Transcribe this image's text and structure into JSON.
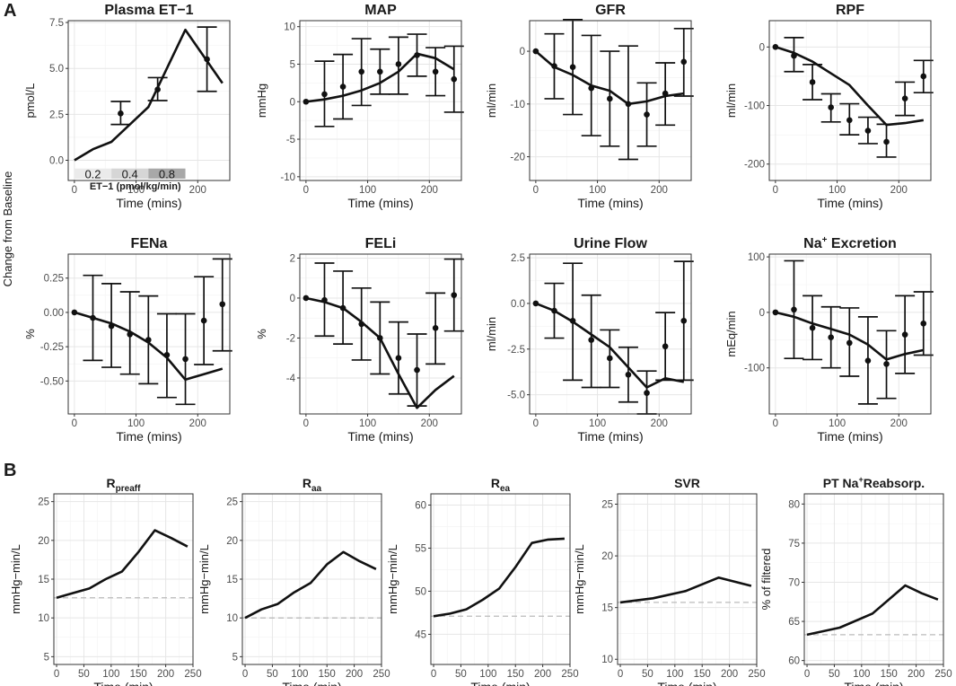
{
  "figure": {
    "panel_a_label": "A",
    "panel_b_label": "B",
    "shared_ylabel": "Change from Baseline",
    "dose_legend": {
      "doses": [
        "0.2",
        "0.4",
        "0.8"
      ],
      "label": "ET−1 (pmol/kg/min)",
      "colors": [
        "#ebebeb",
        "#d6d6d6",
        "#a8a8a8"
      ]
    }
  },
  "colors": {
    "line": "#111111",
    "grid": "#e6e6e6",
    "frame": "#333333",
    "baseline": "#bbbbbb"
  },
  "chart_data": [
    {
      "id": "et1",
      "type": "line",
      "title": "Plasma ET−1",
      "xlabel": "Time (mins)",
      "ylabel": "pmol/L",
      "xlim": [
        -10,
        252
      ],
      "ylim": [
        -1.1,
        7.6
      ],
      "xticks": [
        0,
        100,
        200
      ],
      "yticks": [
        0.0,
        2.5,
        5.0,
        7.5
      ],
      "ytick_labels": [
        "0.0",
        "2.5",
        "5.0",
        "7.5"
      ],
      "model": {
        "x": [
          0,
          30,
          60,
          120,
          180,
          240
        ],
        "y": [
          0,
          0.6,
          1.0,
          2.9,
          7.1,
          4.2
        ]
      },
      "observed": {
        "x": [
          75,
          135,
          215
        ],
        "mean": [
          2.55,
          3.85,
          5.5
        ],
        "lower": [
          1.95,
          3.25,
          3.75
        ],
        "upper": [
          3.2,
          4.5,
          7.25
        ]
      }
    },
    {
      "id": "map",
      "type": "line",
      "title": "MAP",
      "xlabel": "Time (mins)",
      "ylabel": "mmHg",
      "xlim": [
        -10,
        252
      ],
      "ylim": [
        -10.5,
        10.8
      ],
      "xticks": [
        0,
        100,
        200
      ],
      "yticks": [
        -10,
        -5,
        0,
        5,
        10
      ],
      "ytick_labels": [
        "-10",
        "-5",
        "0",
        "5",
        "10"
      ],
      "model": {
        "x": [
          0,
          30,
          60,
          90,
          120,
          150,
          180,
          210,
          240
        ],
        "y": [
          0,
          0.3,
          0.8,
          1.5,
          2.5,
          4,
          6.4,
          5.8,
          4.3
        ]
      },
      "observed": {
        "x": [
          0,
          30,
          60,
          90,
          120,
          150,
          180,
          210,
          240
        ],
        "mean": [
          0,
          1,
          2,
          4,
          4,
          5,
          6.2,
          4,
          3
        ],
        "lower": [
          0,
          -3.3,
          -2.3,
          -0.5,
          1,
          1,
          3.4,
          0.8,
          -1.4
        ],
        "upper": [
          0,
          5.4,
          6.3,
          8.4,
          7,
          8.6,
          9,
          7.2,
          7.4
        ]
      }
    },
    {
      "id": "gfr",
      "type": "line",
      "title": "GFR",
      "xlabel": "Time (mins)",
      "ylabel": "ml/min",
      "xlim": [
        -10,
        252
      ],
      "ylim": [
        -24.5,
        5.8
      ],
      "xticks": [
        0,
        100,
        200
      ],
      "yticks": [
        -20,
        -10,
        0
      ],
      "ytick_labels": [
        "-20",
        "-10",
        "0"
      ],
      "model": {
        "x": [
          0,
          30,
          60,
          90,
          120,
          150,
          180,
          210,
          240
        ],
        "y": [
          0,
          -3,
          -4.5,
          -6.5,
          -7.5,
          -10,
          -9.5,
          -8.5,
          -8
        ]
      },
      "observed": {
        "x": [
          0,
          30,
          60,
          90,
          120,
          150,
          180,
          210,
          240
        ],
        "mean": [
          0,
          -2.8,
          -3,
          -7,
          -9,
          -10,
          -12,
          -8,
          -2
        ],
        "lower": [
          0,
          -9,
          -12,
          -16,
          -18,
          -20.5,
          -18,
          -14,
          -8.5
        ],
        "upper": [
          0,
          3.3,
          6,
          3,
          0,
          1,
          -6,
          -2.2,
          4.3
        ]
      }
    },
    {
      "id": "rpf",
      "type": "line",
      "title": "RPF",
      "xlabel": "Time (mins)",
      "ylabel": "ml/min",
      "xlim": [
        -10,
        252
      ],
      "ylim": [
        -228,
        45
      ],
      "xticks": [
        0,
        100,
        200
      ],
      "yticks": [
        -200,
        -100,
        0
      ],
      "ytick_labels": [
        "-200",
        "-100",
        "0"
      ],
      "model": {
        "x": [
          0,
          30,
          60,
          90,
          120,
          150,
          180,
          210,
          240
        ],
        "y": [
          0,
          -10,
          -25,
          -45,
          -65,
          -100,
          -133,
          -130,
          -125
        ]
      },
      "observed": {
        "x": [
          0,
          30,
          60,
          90,
          120,
          150,
          180,
          210,
          240
        ],
        "mean": [
          0,
          -15,
          -60,
          -103,
          -125,
          -143,
          -162,
          -88,
          -50
        ],
        "lower": [
          0,
          -42,
          -90,
          -128,
          -150,
          -165,
          -188,
          -117,
          -78
        ],
        "upper": [
          0,
          16,
          -30,
          -80,
          -97,
          -120,
          -132,
          -60,
          -23
        ]
      }
    },
    {
      "id": "fena",
      "type": "line",
      "title": "FENa",
      "xlabel": "Time (mins)",
      "ylabel": "%",
      "xlim": [
        -10,
        252
      ],
      "ylim": [
        -0.74,
        0.425
      ],
      "xticks": [
        0,
        100,
        200
      ],
      "yticks": [
        -0.5,
        -0.25,
        0.0,
        0.25
      ],
      "ytick_labels": [
        "-0.50",
        "-0.25",
        "0.00",
        "0.25"
      ],
      "model": {
        "x": [
          0,
          30,
          60,
          90,
          120,
          150,
          180,
          210,
          240
        ],
        "y": [
          0,
          -0.04,
          -0.08,
          -0.14,
          -0.22,
          -0.33,
          -0.49,
          -0.45,
          -0.41
        ]
      },
      "observed": {
        "x": [
          0,
          30,
          60,
          90,
          120,
          150,
          180,
          210,
          240
        ],
        "mean": [
          0,
          -0.04,
          -0.1,
          -0.16,
          -0.2,
          -0.31,
          -0.34,
          -0.06,
          0.06
        ],
        "lower": [
          0,
          -0.35,
          -0.4,
          -0.45,
          -0.52,
          -0.62,
          -0.67,
          -0.38,
          -0.28
        ],
        "upper": [
          0,
          0.27,
          0.21,
          0.15,
          0.12,
          -0.01,
          -0.01,
          0.26,
          0.39
        ]
      }
    },
    {
      "id": "feli",
      "type": "line",
      "title": "FELi",
      "xlabel": "Time (mins)",
      "ylabel": "%",
      "xlim": [
        -10,
        252
      ],
      "ylim": [
        -5.8,
        2.2
      ],
      "xticks": [
        0,
        100,
        200
      ],
      "yticks": [
        -4,
        -2,
        0,
        2
      ],
      "ytick_labels": [
        "-4",
        "-2",
        "0",
        "2"
      ],
      "model": {
        "x": [
          0,
          30,
          60,
          90,
          120,
          150,
          180,
          210,
          240
        ],
        "y": [
          0,
          -0.2,
          -0.5,
          -1.2,
          -2,
          -3.8,
          -5.5,
          -4.6,
          -3.9
        ]
      },
      "observed": {
        "x": [
          0,
          30,
          60,
          90,
          120,
          150,
          180,
          210,
          240
        ],
        "mean": [
          0,
          -0.1,
          -0.5,
          -1.3,
          -2,
          -3,
          -3.6,
          -1.5,
          0.15
        ],
        "lower": [
          0,
          -1.9,
          -2.3,
          -3.1,
          -3.8,
          -4.8,
          -5.4,
          -3.3,
          -1.65
        ],
        "upper": [
          0,
          1.75,
          1.35,
          0.5,
          -0.2,
          -1.2,
          -1.8,
          0.25,
          1.95
        ]
      }
    },
    {
      "id": "urine",
      "type": "line",
      "title": "Urine Flow",
      "xlabel": "Time (mins)",
      "ylabel": "ml/min",
      "xlim": [
        -10,
        252
      ],
      "ylim": [
        -6.05,
        2.7
      ],
      "xticks": [
        0,
        100,
        200
      ],
      "yticks": [
        -5.0,
        -2.5,
        0.0,
        2.5
      ],
      "ytick_labels": [
        "-5.0",
        "-2.5",
        "0.0",
        "2.5"
      ],
      "model": {
        "x": [
          0,
          30,
          60,
          90,
          120,
          150,
          180,
          210,
          240
        ],
        "y": [
          0,
          -0.4,
          -1,
          -1.7,
          -2.4,
          -3.5,
          -4.6,
          -4.1,
          -4.3
        ]
      },
      "observed": {
        "x": [
          0,
          30,
          60,
          90,
          120,
          150,
          180,
          210,
          240
        ],
        "mean": [
          0,
          -0.4,
          -0.95,
          -2,
          -3,
          -3.9,
          -4.9,
          -2.35,
          -0.95
        ],
        "lower": [
          0,
          -1.9,
          -4.2,
          -4.6,
          -4.6,
          -5.4,
          -6.05,
          -4.2,
          -4.2
        ],
        "upper": [
          0,
          1.1,
          2.2,
          0.45,
          -1.45,
          -2.4,
          -3.7,
          -0.5,
          2.3
        ]
      }
    },
    {
      "id": "na",
      "type": "line",
      "title": "Na+ Excretion",
      "title_parts": [
        "Na",
        "+",
        " Excretion"
      ],
      "xlabel": "Time (mins)",
      "ylabel": "mEq/min",
      "xlim": [
        -10,
        252
      ],
      "ylim": [
        -183,
        105
      ],
      "xticks": [
        0,
        100,
        200
      ],
      "yticks": [
        -100,
        0,
        100
      ],
      "ytick_labels": [
        "-100",
        "0",
        "100"
      ],
      "model": {
        "x": [
          0,
          30,
          60,
          90,
          120,
          150,
          180,
          210,
          240
        ],
        "y": [
          0,
          -8,
          -20,
          -30,
          -40,
          -58,
          -85,
          -75,
          -68
        ]
      },
      "observed": {
        "x": [
          0,
          30,
          60,
          90,
          120,
          150,
          180,
          210,
          240
        ],
        "mean": [
          0,
          5,
          -28,
          -45,
          -55,
          -87,
          -93,
          -40,
          -20
        ],
        "lower": [
          0,
          -83,
          -85,
          -100,
          -115,
          -165,
          -155,
          -110,
          -77
        ],
        "upper": [
          0,
          93,
          30,
          10,
          8,
          -8,
          -33,
          30,
          37
        ]
      }
    },
    {
      "id": "rpreaff",
      "type": "line",
      "title": "R",
      "title_sub": "preaff",
      "xlabel": "Time (min)",
      "ylabel": "mmHg−min/L",
      "xlim": [
        -5,
        250
      ],
      "ylim": [
        4,
        26
      ],
      "xticks": [
        0,
        50,
        100,
        150,
        200,
        250
      ],
      "xtick_labels": [
        "0",
        "50",
        "100",
        "150",
        "200",
        "250"
      ],
      "yticks": [
        5,
        10,
        15,
        20,
        25
      ],
      "ytick_labels": [
        "5",
        "10",
        "15",
        "20",
        "25"
      ],
      "baseline": 12.6,
      "model": {
        "x": [
          0,
          30,
          60,
          90,
          120,
          150,
          180,
          210,
          240
        ],
        "y": [
          12.6,
          13.2,
          13.8,
          15,
          16,
          18.5,
          21.3,
          20.3,
          19.2
        ]
      }
    },
    {
      "id": "raa",
      "type": "line",
      "title": "R",
      "title_sub": "aa",
      "xlabel": "Time (min)",
      "ylabel": "mmHg−min/L",
      "xlim": [
        -5,
        250
      ],
      "ylim": [
        4,
        26
      ],
      "xticks": [
        0,
        50,
        100,
        150,
        200,
        250
      ],
      "xtick_labels": [
        "0",
        "50",
        "100",
        "150",
        "200",
        "250"
      ],
      "yticks": [
        5,
        10,
        15,
        20,
        25
      ],
      "ytick_labels": [
        "5",
        "10",
        "15",
        "20",
        "25"
      ],
      "baseline": 10,
      "model": {
        "x": [
          0,
          30,
          60,
          90,
          120,
          150,
          180,
          210,
          240
        ],
        "y": [
          10,
          11.1,
          11.8,
          13.3,
          14.5,
          16.9,
          18.5,
          17.3,
          16.3
        ]
      }
    },
    {
      "id": "rea",
      "type": "line",
      "title": "R",
      "title_sub": "ea",
      "xlabel": "Time (min)",
      "ylabel": "mmHg−min/L",
      "xlim": [
        -5,
        250
      ],
      "ylim": [
        41.5,
        61.3
      ],
      "xticks": [
        0,
        50,
        100,
        150,
        200,
        250
      ],
      "xtick_labels": [
        "0",
        "50",
        "100",
        "150",
        "200",
        "250"
      ],
      "yticks": [
        45,
        50,
        55,
        60
      ],
      "ytick_labels": [
        "45",
        "50",
        "55",
        "60"
      ],
      "baseline": 47.1,
      "model": {
        "x": [
          0,
          30,
          60,
          90,
          120,
          150,
          180,
          210,
          240
        ],
        "y": [
          47.1,
          47.4,
          47.9,
          49,
          50.3,
          52.8,
          55.6,
          56,
          56.1
        ]
      }
    },
    {
      "id": "svr",
      "type": "line",
      "title": "SVR",
      "xlabel": "Time (min)",
      "ylabel": "mmHg−min/L",
      "xlim": [
        -5,
        250
      ],
      "ylim": [
        9.5,
        26
      ],
      "xticks": [
        0,
        50,
        100,
        150,
        200,
        250
      ],
      "xtick_labels": [
        "0",
        "50",
        "100",
        "150",
        "200",
        "250"
      ],
      "yticks": [
        10,
        15,
        20,
        25
      ],
      "ytick_labels": [
        "10",
        "15",
        "20",
        "25"
      ],
      "baseline": 15.5,
      "model": {
        "x": [
          0,
          60,
          120,
          180,
          240
        ],
        "y": [
          15.5,
          15.9,
          16.6,
          17.9,
          17.1
        ]
      }
    },
    {
      "id": "ptna",
      "type": "line",
      "title": "PT Na+Reabsorp.",
      "title_parts": [
        "PT Na",
        "+",
        "Reabsorp."
      ],
      "xlabel": "Time (min)",
      "ylabel": "% of filtered",
      "xlim": [
        -5,
        250
      ],
      "ylim": [
        59.5,
        81.3
      ],
      "xticks": [
        0,
        50,
        100,
        150,
        200,
        250
      ],
      "xtick_labels": [
        "0",
        "50",
        "100",
        "150",
        "200",
        "250"
      ],
      "yticks": [
        60,
        65,
        70,
        75,
        80
      ],
      "ytick_labels": [
        "60",
        "65",
        "70",
        "75",
        "80"
      ],
      "baseline": 63.3,
      "model": {
        "x": [
          0,
          60,
          120,
          180,
          210,
          240
        ],
        "y": [
          63.3,
          64.2,
          66,
          69.6,
          68.6,
          67.8
        ]
      }
    }
  ]
}
